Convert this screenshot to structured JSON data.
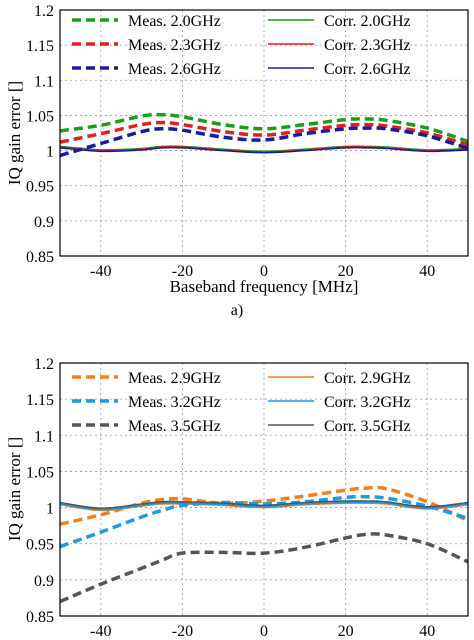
{
  "caption": "a)",
  "chart_data": [
    {
      "type": "line",
      "title": "",
      "xlabel": "Baseband frequency [MHz]",
      "ylabel": "IQ gain error []",
      "xlim": [
        -50,
        50
      ],
      "ylim": [
        0.85,
        1.2
      ],
      "xticks": [
        -40,
        -20,
        0,
        20,
        40
      ],
      "xtick_labels": [
        "-40",
        "-20",
        "0",
        "20",
        "40"
      ],
      "yticks": [
        0.85,
        0.9,
        0.95,
        1,
        1.05,
        1.1,
        1.15,
        1.2
      ],
      "ytick_labels": [
        "0.85",
        "0.9",
        "0.95",
        "1",
        "1.05",
        "1.1",
        "1.15",
        "1.2"
      ],
      "grid": true,
      "legend_position": "top",
      "legend_columns": 2,
      "x": [
        -50,
        -40,
        -30,
        -25,
        -20,
        -10,
        0,
        10,
        20,
        25,
        30,
        40,
        50
      ],
      "series": [
        {
          "name": "Meas. 2.0GHz",
          "color": "#1a9e1a",
          "dashed": true,
          "width": 3.5,
          "values": [
            1.028,
            1.036,
            1.049,
            1.051,
            1.048,
            1.037,
            1.031,
            1.037,
            1.044,
            1.045,
            1.043,
            1.032,
            1.013
          ]
        },
        {
          "name": "Corr. 2.0GHz",
          "color": "#1a9e1a",
          "dashed": false,
          "width": 1.6,
          "values": [
            1.006,
            1.001,
            1.003,
            1.006,
            1.006,
            1.002,
            0.999,
            1.002,
            1.006,
            1.006,
            1.005,
            1.001,
            1.003
          ]
        },
        {
          "name": "Meas. 2.3GHz",
          "color": "#e02020",
          "dashed": true,
          "width": 3.5,
          "values": [
            1.012,
            1.024,
            1.037,
            1.04,
            1.037,
            1.027,
            1.022,
            1.029,
            1.036,
            1.037,
            1.035,
            1.025,
            1.008
          ]
        },
        {
          "name": "Corr. 2.3GHz",
          "color": "#e02020",
          "dashed": false,
          "width": 1.6,
          "values": [
            1.005,
            1.0,
            1.002,
            1.005,
            1.005,
            1.001,
            0.998,
            1.001,
            1.005,
            1.005,
            1.004,
            1.0,
            1.002
          ]
        },
        {
          "name": "Meas. 2.6GHz",
          "color": "#1a1aa0",
          "dashed": true,
          "width": 3.5,
          "values": [
            0.993,
            1.01,
            1.027,
            1.031,
            1.029,
            1.019,
            1.015,
            1.024,
            1.031,
            1.032,
            1.031,
            1.021,
            1.003
          ]
        },
        {
          "name": "Corr. 2.6GHz",
          "color": "#1a1aa0",
          "dashed": false,
          "width": 1.6,
          "values": [
            1.004,
            0.999,
            1.001,
            1.004,
            1.004,
            1.0,
            0.997,
            1.0,
            1.004,
            1.004,
            1.003,
            0.999,
            1.001
          ]
        }
      ]
    },
    {
      "type": "line",
      "title": "",
      "xlabel": "",
      "ylabel": "IQ gain error []",
      "xlim": [
        -50,
        50
      ],
      "ylim": [
        0.85,
        1.2
      ],
      "xticks": [
        -40,
        -20,
        0,
        20,
        40
      ],
      "xtick_labels": [
        "-40",
        "-20",
        "0",
        "20",
        "40"
      ],
      "yticks": [
        0.85,
        0.9,
        0.95,
        1,
        1.05,
        1.1,
        1.15,
        1.2
      ],
      "ytick_labels": [
        "0.85",
        "0.9",
        "0.95",
        "1",
        "1.05",
        "1.1",
        "1.15",
        "1.2"
      ],
      "grid": true,
      "legend_position": "top",
      "legend_columns": 2,
      "x": [
        -50,
        -40,
        -30,
        -25,
        -20,
        -10,
        0,
        10,
        20,
        25,
        30,
        40,
        50
      ],
      "series": [
        {
          "name": "Meas. 2.9GHz",
          "color": "#f08020",
          "dashed": true,
          "width": 3.5,
          "values": [
            0.977,
            0.99,
            1.006,
            1.011,
            1.012,
            1.006,
            1.009,
            1.016,
            1.024,
            1.027,
            1.026,
            1.008,
            0.982
          ]
        },
        {
          "name": "Corr. 2.9GHz",
          "color": "#f08020",
          "dashed": false,
          "width": 1.6,
          "values": [
            1.004,
            0.996,
            1.002,
            1.005,
            1.005,
            1.003,
            1.0,
            1.004,
            1.006,
            1.006,
            1.005,
            0.998,
            1.004
          ]
        },
        {
          "name": "Meas. 3.2GHz",
          "color": "#1e9ae0",
          "dashed": true,
          "width": 3.5,
          "values": [
            0.946,
            0.966,
            0.987,
            0.996,
            1.003,
            1.007,
            1.005,
            1.008,
            1.014,
            1.015,
            1.013,
            1.002,
            0.985
          ]
        },
        {
          "name": "Corr. 3.2GHz",
          "color": "#1e9ae0",
          "dashed": false,
          "width": 1.6,
          "values": [
            1.005,
            0.997,
            1.003,
            1.006,
            1.006,
            1.004,
            1.001,
            1.005,
            1.007,
            1.007,
            1.006,
            0.999,
            1.005
          ]
        },
        {
          "name": "Meas. 3.5GHz",
          "color": "#555555",
          "dashed": true,
          "width": 3.5,
          "values": [
            0.87,
            0.894,
            0.916,
            0.927,
            0.937,
            0.938,
            0.937,
            0.945,
            0.958,
            0.963,
            0.962,
            0.95,
            0.925
          ]
        },
        {
          "name": "Corr. 3.5GHz",
          "color": "#555555",
          "dashed": false,
          "width": 1.6,
          "values": [
            1.007,
            0.999,
            1.005,
            1.008,
            1.008,
            1.006,
            1.003,
            1.007,
            1.009,
            1.009,
            1.008,
            1.001,
            1.007
          ]
        }
      ]
    }
  ]
}
